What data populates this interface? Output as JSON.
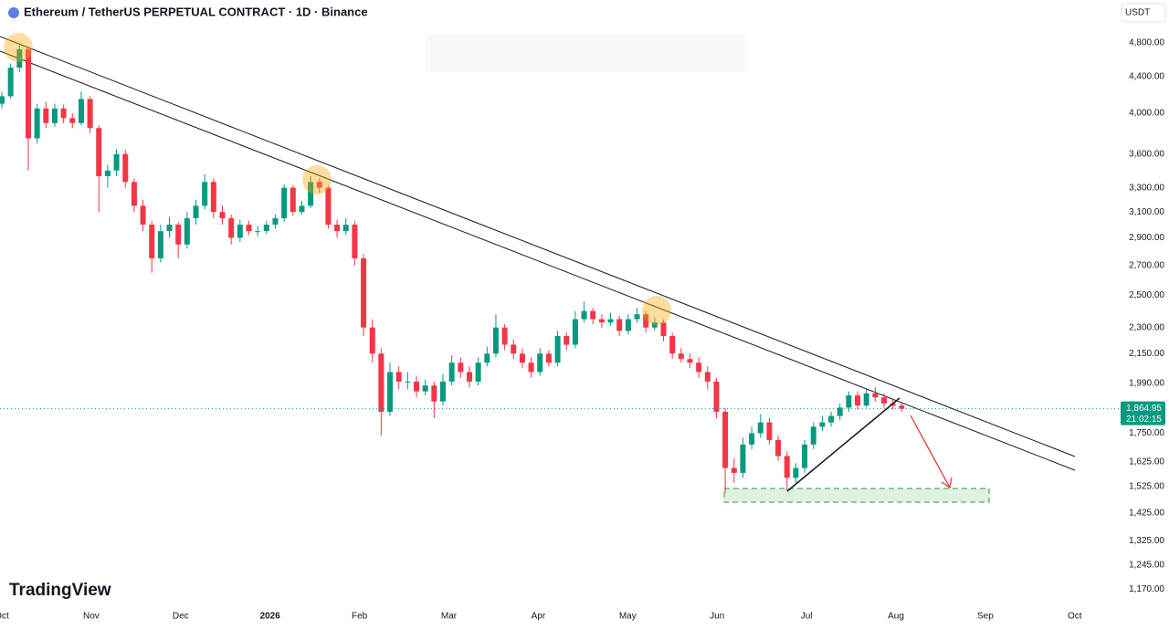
{
  "chart_data": {
    "type": "candlestick",
    "title": "Ethereum / TetherUS PERPETUAL CONTRACT · 1D · Binance",
    "currency": "USDT",
    "brand": "TradingView",
    "log_scale": true,
    "up_color": "#089981",
    "down_color": "#f23645",
    "x_labels": [
      "Oct",
      "Nov",
      "Dec",
      "2026",
      "Feb",
      "Mar",
      "Apr",
      "May",
      "Jun",
      "Jul",
      "Aug",
      "Sep",
      "Oct"
    ],
    "ylim": [
      1130,
      5360
    ],
    "yticks": [
      {
        "value": 4800,
        "label": "4,800.00"
      },
      {
        "value": 4400,
        "label": "4,400.00"
      },
      {
        "value": 4000,
        "label": "4,000.00"
      },
      {
        "value": 3600,
        "label": "3,600.00"
      },
      {
        "value": 3300,
        "label": "3,300.00"
      },
      {
        "value": 3100,
        "label": "3,100.00"
      },
      {
        "value": 2900,
        "label": "2,900.00"
      },
      {
        "value": 2700,
        "label": "2,700.00"
      },
      {
        "value": 2500,
        "label": "2,500.00"
      },
      {
        "value": 2300,
        "label": "2,300.00"
      },
      {
        "value": 2150,
        "label": "2,150.00"
      },
      {
        "value": 1990,
        "label": "1,990.00"
      },
      {
        "value": 1750,
        "label": "1,750.00"
      },
      {
        "value": 1625,
        "label": "1,625.00"
      },
      {
        "value": 1525,
        "label": "1,525.00"
      },
      {
        "value": 1425,
        "label": "1,425.00"
      },
      {
        "value": 1325,
        "label": "1,325.00"
      },
      {
        "value": 1245,
        "label": "1,245.00"
      },
      {
        "value": 1170,
        "label": "1,170.00"
      }
    ],
    "last_price": {
      "value": 1864.95,
      "label": "1,864.95"
    },
    "countdown": "21:02:15",
    "candles": [
      [
        4100,
        4230,
        4050,
        4180
      ],
      [
        4180,
        4550,
        4150,
        4500
      ],
      [
        4500,
        4790,
        4450,
        4720
      ],
      [
        4720,
        4750,
        3450,
        3750
      ],
      [
        3750,
        4100,
        3700,
        4050
      ],
      [
        4050,
        4120,
        3850,
        3900
      ],
      [
        3900,
        4100,
        3860,
        4050
      ],
      [
        4050,
        4090,
        3900,
        3950
      ],
      [
        3950,
        4000,
        3850,
        3900
      ],
      [
        3900,
        4230,
        3880,
        4150
      ],
      [
        4150,
        4180,
        3800,
        3850
      ],
      [
        3850,
        3880,
        3100,
        3400
      ],
      [
        3400,
        3500,
        3300,
        3450
      ],
      [
        3450,
        3650,
        3400,
        3600
      ],
      [
        3600,
        3640,
        3300,
        3350
      ],
      [
        3350,
        3380,
        3100,
        3150
      ],
      [
        3150,
        3200,
        2950,
        3000
      ],
      [
        3000,
        3030,
        2650,
        2750
      ],
      [
        2750,
        3000,
        2720,
        2950
      ],
      [
        2950,
        3060,
        2900,
        3000
      ],
      [
        3000,
        3020,
        2750,
        2850
      ],
      [
        2850,
        3100,
        2820,
        3050
      ],
      [
        3050,
        3200,
        3000,
        3150
      ],
      [
        3150,
        3420,
        3120,
        3350
      ],
      [
        3350,
        3380,
        3050,
        3100
      ],
      [
        3100,
        3150,
        3000,
        3050
      ],
      [
        3050,
        3080,
        2850,
        2900
      ],
      [
        2900,
        3040,
        2870,
        3000
      ],
      [
        3000,
        3030,
        2920,
        2950
      ],
      [
        2950,
        2990,
        2910,
        2950
      ],
      [
        2950,
        3030,
        2930,
        3000
      ],
      [
        3000,
        3080,
        2970,
        3050
      ],
      [
        3050,
        3330,
        3020,
        3300
      ],
      [
        3300,
        3320,
        3070,
        3100
      ],
      [
        3100,
        3190,
        3080,
        3150
      ],
      [
        3150,
        3400,
        3130,
        3350
      ],
      [
        3350,
        3380,
        3260,
        3300
      ],
      [
        3300,
        3320,
        2970,
        3000
      ],
      [
        3000,
        3040,
        2900,
        2950
      ],
      [
        2950,
        3050,
        2920,
        3000
      ],
      [
        3000,
        3030,
        2700,
        2750
      ],
      [
        2750,
        2780,
        2250,
        2300
      ],
      [
        2300,
        2350,
        2100,
        2150
      ],
      [
        2150,
        2180,
        1740,
        1850
      ],
      [
        1850,
        2100,
        1830,
        2050
      ],
      [
        2050,
        2080,
        1960,
        2000
      ],
      [
        2000,
        2050,
        1960,
        2000
      ],
      [
        2000,
        2030,
        1920,
        1950
      ],
      [
        1950,
        2010,
        1930,
        1980
      ],
      [
        1980,
        2000,
        1820,
        1900
      ],
      [
        1900,
        2040,
        1880,
        2000
      ],
      [
        2000,
        2140,
        1980,
        2100
      ],
      [
        2100,
        2130,
        2020,
        2050
      ],
      [
        2050,
        2080,
        1970,
        2000
      ],
      [
        2000,
        2130,
        1980,
        2100
      ],
      [
        2100,
        2190,
        2080,
        2150
      ],
      [
        2150,
        2380,
        2130,
        2300
      ],
      [
        2300,
        2320,
        2170,
        2200
      ],
      [
        2200,
        2230,
        2120,
        2150
      ],
      [
        2150,
        2180,
        2070,
        2100
      ],
      [
        2100,
        2130,
        2020,
        2050
      ],
      [
        2050,
        2180,
        2030,
        2150
      ],
      [
        2150,
        2170,
        2080,
        2100
      ],
      [
        2100,
        2280,
        2080,
        2250
      ],
      [
        2250,
        2270,
        2170,
        2200
      ],
      [
        2200,
        2400,
        2180,
        2350
      ],
      [
        2350,
        2460,
        2330,
        2400
      ],
      [
        2400,
        2420,
        2320,
        2350
      ],
      [
        2350,
        2380,
        2300,
        2330
      ],
      [
        2330,
        2390,
        2310,
        2350
      ],
      [
        2350,
        2370,
        2250,
        2280
      ],
      [
        2280,
        2380,
        2260,
        2350
      ],
      [
        2350,
        2420,
        2330,
        2380
      ],
      [
        2380,
        2400,
        2270,
        2300
      ],
      [
        2300,
        2360,
        2280,
        2330
      ],
      [
        2330,
        2350,
        2220,
        2250
      ],
      [
        2250,
        2270,
        2120,
        2150
      ],
      [
        2150,
        2180,
        2100,
        2120
      ],
      [
        2120,
        2150,
        2070,
        2100
      ],
      [
        2100,
        2130,
        2020,
        2050
      ],
      [
        2050,
        2080,
        1960,
        2000
      ],
      [
        2000,
        2020,
        1820,
        1850
      ],
      [
        1850,
        1870,
        1500,
        1600
      ],
      [
        1600,
        1640,
        1540,
        1580
      ],
      [
        1580,
        1730,
        1560,
        1700
      ],
      [
        1700,
        1780,
        1680,
        1750
      ],
      [
        1750,
        1840,
        1730,
        1800
      ],
      [
        1800,
        1820,
        1700,
        1720
      ],
      [
        1720,
        1740,
        1630,
        1650
      ],
      [
        1650,
        1670,
        1510,
        1560
      ],
      [
        1560,
        1620,
        1540,
        1600
      ],
      [
        1600,
        1720,
        1580,
        1700
      ],
      [
        1700,
        1800,
        1680,
        1780
      ],
      [
        1780,
        1830,
        1760,
        1800
      ],
      [
        1800,
        1850,
        1780,
        1830
      ],
      [
        1830,
        1890,
        1810,
        1870
      ],
      [
        1870,
        1950,
        1850,
        1930
      ],
      [
        1930,
        1950,
        1860,
        1880
      ],
      [
        1880,
        1960,
        1870,
        1940
      ],
      [
        1940,
        1970,
        1900,
        1920
      ],
      [
        1920,
        1940,
        1870,
        1890
      ],
      [
        1890,
        1910,
        1860,
        1880
      ],
      [
        1880,
        1900,
        1850,
        1865
      ]
    ]
  }
}
